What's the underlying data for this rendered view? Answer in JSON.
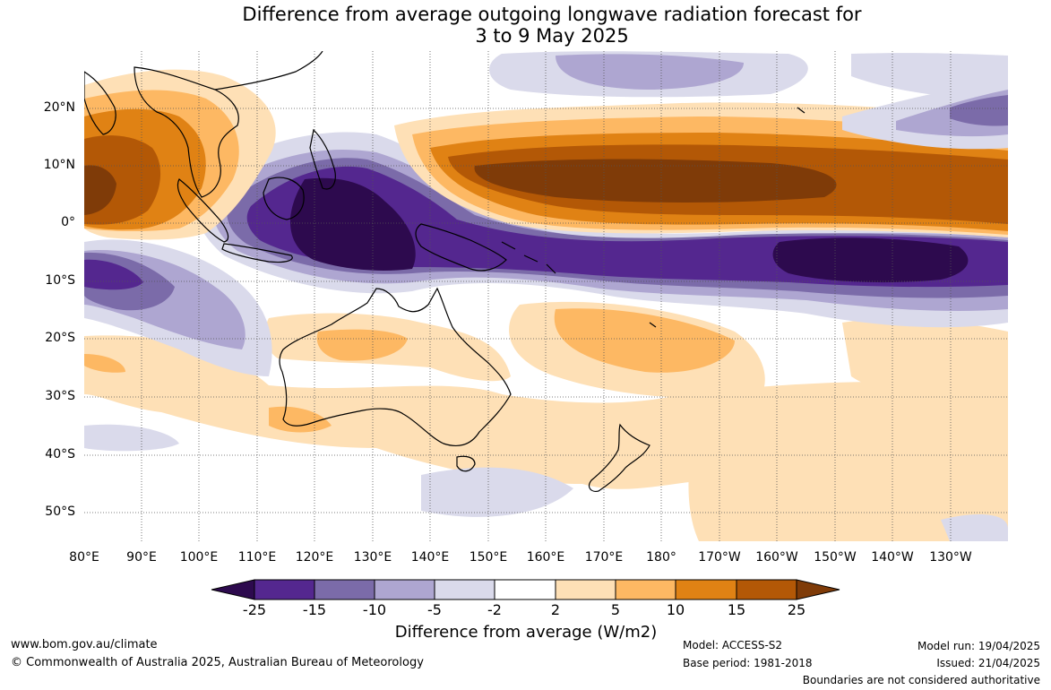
{
  "title": {
    "line1": "Difference from average outgoing longwave radiation forecast for",
    "line2": "3 to 9 May 2025"
  },
  "map": {
    "lat_labels": [
      "20°N",
      "10°N",
      "0°",
      "10°S",
      "20°S",
      "30°S",
      "40°S",
      "50°S"
    ],
    "lon_labels": [
      "80°E",
      "90°E",
      "100°E",
      "110°E",
      "120°E",
      "130°E",
      "140°E",
      "150°E",
      "160°E",
      "170°E",
      "180°",
      "170°W",
      "160°W",
      "150°W",
      "140°W",
      "130°W"
    ]
  },
  "colorbar": {
    "ticks": [
      "-25",
      "-15",
      "-10",
      "-5",
      "-2",
      "2",
      "5",
      "10",
      "15",
      "25"
    ],
    "colors": [
      "#2d0a4e",
      "#54278f",
      "#7b6ba9",
      "#aea6d1",
      "#dadaeb",
      "#ffffff",
      "#fee0b6",
      "#fdb863",
      "#e08214",
      "#b35806",
      "#7f3b08"
    ],
    "label": "Difference from average (W/m2)"
  },
  "footer": {
    "url": "www.bom.gov.au/climate",
    "copyright": "© Commonwealth of Australia 2025, Australian Bureau of Meteorology",
    "model": "Model: ACCESS-S2",
    "base_period": "Base period: 1981-2018",
    "model_run": "Model run: 19/04/2025",
    "issued": "Issued: 21/04/2025",
    "disclaimer": "Boundaries are not considered authoritative"
  }
}
